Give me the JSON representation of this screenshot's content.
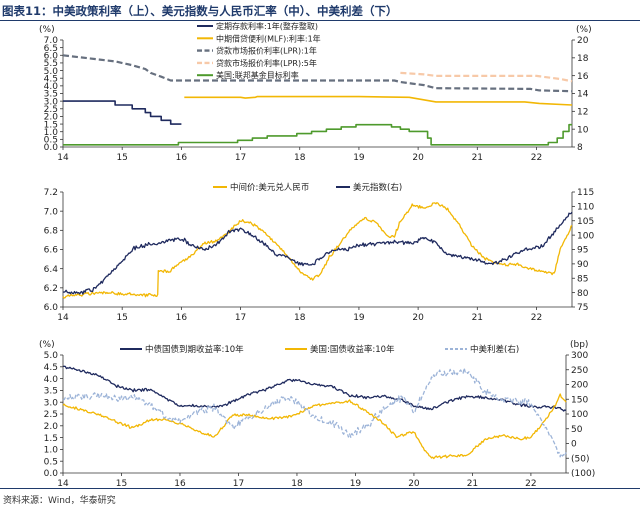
{
  "figure_title": "图表11：中美政策利率（上）、美元指数与人民币汇率（中）、中美利差（下）",
  "source": "资料来源：Wind，华泰研究",
  "colors": {
    "rule": "#1f3a6b",
    "navy": "#1f2a5e",
    "gold": "#f2b705",
    "gray": "#67707f",
    "peach": "#f7c9a8",
    "green": "#4e9a2c",
    "lightblue": "#9db4d8"
  },
  "chart_data": [
    {
      "type": "line",
      "title": "中美政策利率",
      "ylabel_left": "(%)",
      "ylabel_right": "(%)",
      "ylim_left": [
        0,
        7
      ],
      "ylim_right": [
        8,
        20
      ],
      "yticks_left": [
        0,
        0.5,
        1,
        1.5,
        2,
        2.5,
        3,
        3.5,
        4,
        4.5,
        5,
        5.5,
        6,
        6.5,
        7
      ],
      "yticks_right": [
        8,
        10,
        12,
        14,
        16,
        18,
        20
      ],
      "xlim": [
        14,
        22.6
      ],
      "xticks": [
        14,
        15,
        16,
        17,
        18,
        19,
        20,
        21,
        22
      ],
      "legend_position": "top-center",
      "series": [
        {
          "name": "定期存款利率:1年(整存整取)",
          "color": "#1f2a5e",
          "dash": "",
          "x": [
            14,
            14.88,
            14.88,
            15.17,
            15.17,
            15.39,
            15.39,
            15.48,
            15.48,
            15.66,
            15.66,
            15.82,
            15.82,
            16.0
          ],
          "y": [
            3.0,
            3.0,
            2.75,
            2.75,
            2.5,
            2.5,
            2.25,
            2.25,
            2.0,
            2.0,
            1.75,
            1.75,
            1.5,
            1.5
          ]
        },
        {
          "name": "中期借贷便利(MLF):利率:1年",
          "color": "#f2b705",
          "dash": "",
          "x": [
            16.05,
            16.1,
            17.0,
            17.08,
            17.25,
            17.28,
            19.0,
            19.85,
            20.3,
            21.8,
            22.05,
            22.6
          ],
          "y": [
            3.25,
            3.25,
            3.25,
            3.2,
            3.25,
            3.3,
            3.3,
            3.25,
            2.95,
            2.95,
            2.85,
            2.75
          ]
        },
        {
          "name": "贷款市场报价利率(LPR):1年",
          "color": "#67707f",
          "dash": "6 3",
          "x": [
            14,
            14.88,
            15.17,
            15.39,
            15.48,
            15.66,
            15.82,
            16.0,
            19.6,
            19.7,
            19.9,
            20.1,
            20.3,
            21.9,
            22.05,
            22.6
          ],
          "y": [
            6.0,
            5.6,
            5.35,
            5.1,
            4.85,
            4.6,
            4.35,
            4.35,
            4.35,
            4.25,
            4.15,
            4.05,
            3.85,
            3.8,
            3.7,
            3.65
          ]
        },
        {
          "name": "贷款市场报价利率(LPR):5年",
          "color": "#f7c9a8",
          "dash": "6 3",
          "x": [
            19.7,
            19.9,
            20.1,
            20.3,
            22.0,
            22.4,
            22.6
          ],
          "y": [
            4.85,
            4.8,
            4.75,
            4.65,
            4.65,
            4.45,
            4.3
          ]
        },
        {
          "name": "美国:联邦基金目标利率",
          "color": "#4e9a2c",
          "dash": "",
          "axis": "right",
          "x": [
            14,
            15.95,
            15.95,
            16.95,
            16.95,
            17.2,
            17.2,
            17.45,
            17.45,
            17.95,
            17.95,
            18.2,
            18.2,
            18.45,
            18.45,
            18.7,
            18.7,
            18.95,
            18.95,
            19.55,
            19.55,
            19.7,
            19.7,
            19.85,
            19.85,
            20.16,
            20.16,
            20.22,
            20.22,
            22.2,
            22.2,
            22.35,
            22.35,
            22.45,
            22.45,
            22.55,
            22.55,
            22.6
          ],
          "y": [
            8.25,
            8.25,
            8.5,
            8.5,
            8.75,
            8.75,
            9.0,
            9.0,
            9.25,
            9.25,
            9.5,
            9.5,
            9.75,
            9.75,
            10.0,
            10.0,
            10.25,
            10.25,
            10.5,
            10.5,
            10.25,
            10.25,
            10.0,
            10.0,
            9.75,
            9.75,
            9.0,
            9.0,
            8.25,
            8.25,
            8.5,
            8.5,
            9.0,
            9.0,
            9.75,
            9.75,
            10.5,
            10.5
          ]
        }
      ]
    },
    {
      "type": "line",
      "title": "美元指数与人民币汇率",
      "ylim_left": [
        6.0,
        7.2
      ],
      "ylim_right": [
        75,
        115
      ],
      "yticks_left": [
        6.0,
        6.2,
        6.4,
        6.6,
        6.8,
        7.0,
        7.2
      ],
      "yticks_right": [
        75,
        80,
        85,
        90,
        95,
        100,
        105,
        110,
        115
      ],
      "xlim": [
        14,
        22.6
      ],
      "xticks": [
        14,
        15,
        16,
        17,
        18,
        19,
        20,
        21,
        22
      ],
      "legend_position": "top-center",
      "series": [
        {
          "name": "中间价:美元兑人民币",
          "color": "#f2b705",
          "x": [
            14.0,
            14.3,
            14.6,
            14.9,
            15.2,
            15.5,
            15.6,
            15.61,
            15.8,
            16.0,
            16.2,
            16.4,
            16.6,
            16.8,
            17.0,
            17.2,
            17.4,
            17.6,
            17.8,
            18.0,
            18.2,
            18.35,
            18.5,
            18.7,
            18.9,
            19.1,
            19.3,
            19.5,
            19.6,
            19.7,
            19.9,
            20.1,
            20.3,
            20.5,
            20.7,
            20.9,
            21.1,
            21.3,
            21.5,
            21.7,
            21.9,
            22.1,
            22.3,
            22.4,
            22.5,
            22.6
          ],
          "y": [
            6.1,
            6.13,
            6.15,
            6.14,
            6.13,
            6.12,
            6.12,
            6.37,
            6.37,
            6.47,
            6.55,
            6.67,
            6.69,
            6.78,
            6.9,
            6.87,
            6.78,
            6.66,
            6.53,
            6.37,
            6.29,
            6.34,
            6.52,
            6.68,
            6.83,
            6.93,
            6.88,
            6.73,
            6.74,
            6.9,
            7.06,
            7.03,
            7.09,
            7.02,
            6.85,
            6.65,
            6.52,
            6.47,
            6.44,
            6.44,
            6.4,
            6.36,
            6.35,
            6.6,
            6.72,
            6.85
          ]
        },
        {
          "name": "美元指数(右)",
          "color": "#1f2a5e",
          "axis": "right",
          "x": [
            14.0,
            14.3,
            14.5,
            14.7,
            14.9,
            15.2,
            15.5,
            15.8,
            16.0,
            16.2,
            16.4,
            16.6,
            16.8,
            17.0,
            17.2,
            17.4,
            17.6,
            17.8,
            18.0,
            18.2,
            18.4,
            18.6,
            18.8,
            19.0,
            19.3,
            19.6,
            19.9,
            20.1,
            20.3,
            20.5,
            20.7,
            20.9,
            21.1,
            21.3,
            21.6,
            21.9,
            22.1,
            22.3,
            22.5,
            22.6
          ],
          "y": [
            80.5,
            80.0,
            81.0,
            84.5,
            89.0,
            95.5,
            97.0,
            98.0,
            99.0,
            96.0,
            95.0,
            97.0,
            101.0,
            102.0,
            100.0,
            97.0,
            93.0,
            92.5,
            90.0,
            89.5,
            93.0,
            95.0,
            95.0,
            96.5,
            97.0,
            97.5,
            97.0,
            99.0,
            97.5,
            93.0,
            92.5,
            92.0,
            90.5,
            90.0,
            93.0,
            95.5,
            96.0,
            101.0,
            106.0,
            108.0
          ]
        }
      ]
    },
    {
      "type": "line",
      "title": "中美利差",
      "ylabel_left": "(%)",
      "ylabel_right": "(bp)",
      "ylim_left": [
        0,
        5
      ],
      "ylim_right": [
        -100,
        300
      ],
      "yticks_left": [
        0,
        0.5,
        1.0,
        1.5,
        2.0,
        2.5,
        3.0,
        3.5,
        4.0,
        4.5,
        5.0
      ],
      "yticks_right": [
        -100,
        -50,
        0,
        50,
        100,
        150,
        200,
        250,
        300
      ],
      "ytick_labels_right": [
        "(100)",
        "(50)",
        "0",
        "50",
        "100",
        "150",
        "200",
        "250",
        "300"
      ],
      "xlim": [
        14,
        22.6
      ],
      "xticks": [
        14,
        15,
        16,
        17,
        18,
        19,
        20,
        21,
        22
      ],
      "legend_position": "top-center",
      "series": [
        {
          "name": "中债国债到期收益率:10年",
          "color": "#1f2a5e",
          "x": [
            14.0,
            14.3,
            14.6,
            14.9,
            15.2,
            15.5,
            15.8,
            16.0,
            16.3,
            16.6,
            16.9,
            17.2,
            17.5,
            17.8,
            18.0,
            18.3,
            18.6,
            18.9,
            19.2,
            19.5,
            19.8,
            20.0,
            20.3,
            20.6,
            20.9,
            21.2,
            21.5,
            21.8,
            22.1,
            22.4,
            22.6
          ],
          "y": [
            4.5,
            4.35,
            4.15,
            3.7,
            3.5,
            3.55,
            3.1,
            2.85,
            2.85,
            2.8,
            3.0,
            3.35,
            3.55,
            3.9,
            3.95,
            3.75,
            3.65,
            3.3,
            3.2,
            3.25,
            3.1,
            2.85,
            2.7,
            3.05,
            3.25,
            3.2,
            3.1,
            2.9,
            2.8,
            2.8,
            2.65
          ]
        },
        {
          "name": "美国:国债收益率:10年",
          "color": "#f2b705",
          "x": [
            14.0,
            14.3,
            14.6,
            14.9,
            15.2,
            15.5,
            15.8,
            16.0,
            16.3,
            16.6,
            16.9,
            17.2,
            17.5,
            17.8,
            18.0,
            18.3,
            18.6,
            18.9,
            19.2,
            19.5,
            19.7,
            20.0,
            20.2,
            20.3,
            20.6,
            20.9,
            21.2,
            21.5,
            21.8,
            22.0,
            22.2,
            22.4,
            22.5,
            22.6
          ],
          "y": [
            2.9,
            2.7,
            2.5,
            2.2,
            1.9,
            2.25,
            2.25,
            2.1,
            1.75,
            1.55,
            2.45,
            2.45,
            2.3,
            2.35,
            2.5,
            2.85,
            2.95,
            3.05,
            2.6,
            2.05,
            1.55,
            1.75,
            0.9,
            0.65,
            0.7,
            0.75,
            1.4,
            1.6,
            1.45,
            1.5,
            2.1,
            2.8,
            3.3,
            3.0
          ]
        },
        {
          "name": "中美利差(右)",
          "color": "#9db4d8",
          "dash": "4 2",
          "axis": "right",
          "x": [
            14.0,
            14.3,
            14.6,
            14.9,
            15.2,
            15.5,
            15.8,
            16.0,
            16.3,
            16.6,
            16.9,
            17.2,
            17.5,
            17.8,
            18.0,
            18.3,
            18.6,
            18.9,
            19.2,
            19.5,
            19.8,
            20.0,
            20.2,
            20.4,
            20.6,
            20.9,
            21.2,
            21.5,
            21.8,
            22.0,
            22.2,
            22.4,
            22.5,
            22.6
          ],
          "y": [
            150,
            160,
            165,
            150,
            160,
            130,
            85,
            75,
            110,
            125,
            55,
            90,
            125,
            155,
            145,
            90,
            70,
            25,
            60,
            120,
            155,
            110,
            190,
            245,
            240,
            245,
            180,
            150,
            145,
            135,
            70,
            0,
            -50,
            -30
          ]
        }
      ]
    }
  ]
}
